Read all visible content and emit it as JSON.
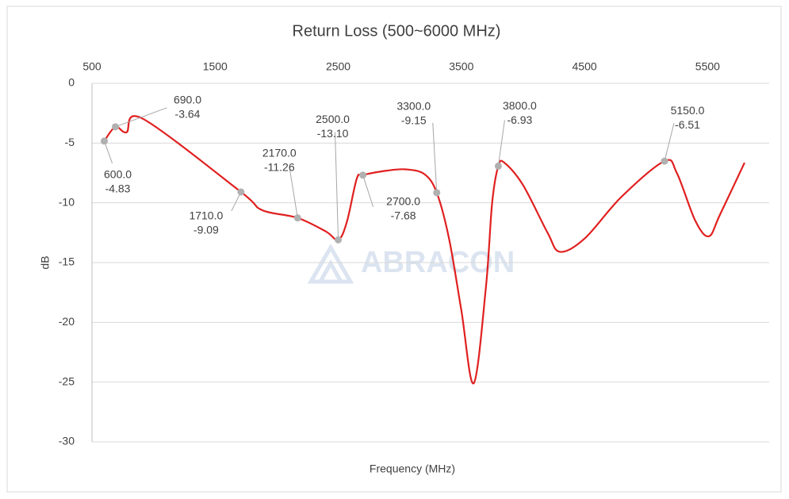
{
  "chart_data": {
    "type": "line",
    "title": "Return Loss (500~6000 MHz)",
    "xlabel": "Frequency (MHz)",
    "ylabel": "dB",
    "watermark": "ABRACON",
    "xlim": [
      500,
      6000
    ],
    "xticks": [
      500,
      1500,
      2500,
      3500,
      4500,
      5500
    ],
    "ylim": [
      -30,
      0
    ],
    "yticks": [
      0,
      -5,
      -10,
      -15,
      -20,
      -25,
      -30
    ],
    "grid": true,
    "series": [
      {
        "color": "#e02020",
        "x": [
          600,
          690,
          780,
          910,
          1710,
          1880,
          2170,
          2400,
          2500,
          2570,
          2650,
          2700,
          2900,
          3050,
          3200,
          3300,
          3400,
          3500,
          3600,
          3700,
          3750,
          3800,
          3850,
          4000,
          4200,
          4300,
          4500,
          4800,
          5150,
          5250,
          5400,
          5510,
          5600,
          5800
        ],
        "values": [
          -4.83,
          -3.64,
          -4.1,
          -2.95,
          -9.09,
          -10.6,
          -11.26,
          -12.4,
          -13.1,
          -11.6,
          -8.0,
          -7.68,
          -7.3,
          -7.2,
          -7.6,
          -9.15,
          -13.0,
          -19.0,
          -25.1,
          -17.0,
          -10.0,
          -6.93,
          -6.65,
          -8.5,
          -12.5,
          -14.1,
          -13.0,
          -9.5,
          -6.51,
          -7.5,
          -11.5,
          -12.8,
          -11.0,
          -6.64
        ]
      }
    ],
    "markers": {
      "color": "#b0b0b0",
      "x": [
        600,
        690,
        1710,
        2170,
        2500,
        2700,
        3300,
        3800,
        5150
      ],
      "x_labels": [
        "600.0",
        "690.0",
        "1710.0",
        "2170.0",
        "2500.0",
        "2700.0",
        "3300.0",
        "3800.0",
        "5150.0"
      ],
      "values": [
        -4.83,
        -3.64,
        -9.09,
        -11.26,
        -13.1,
        -7.68,
        -9.15,
        -6.93,
        -6.51
      ],
      "value_labels": [
        "-4.83",
        "-3.64",
        "-9.09",
        "-11.26",
        "-13.10",
        "-7.68",
        "-9.15",
        "-6.93",
        "-6.51"
      ]
    }
  }
}
